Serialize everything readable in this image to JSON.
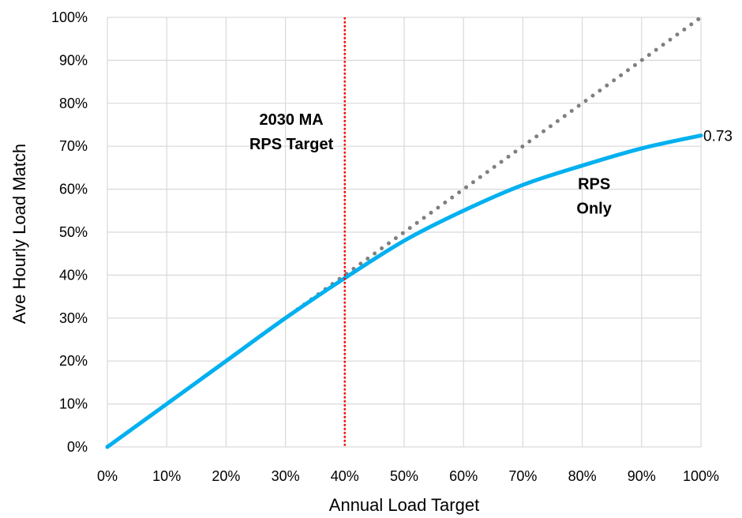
{
  "chart_data": {
    "type": "line",
    "xlabel": "Annual Load Target",
    "ylabel": "Ave Hourly Load Match",
    "xlim": [
      0,
      1
    ],
    "ylim": [
      0,
      1
    ],
    "x_ticks": [
      "0%",
      "10%",
      "20%",
      "30%",
      "40%",
      "50%",
      "60%",
      "70%",
      "80%",
      "90%",
      "100%"
    ],
    "y_ticks": [
      "0%",
      "10%",
      "20%",
      "30%",
      "40%",
      "50%",
      "60%",
      "70%",
      "80%",
      "90%",
      "100%"
    ],
    "grid": true,
    "series": [
      {
        "name": "",
        "style": "dotted",
        "color": "#7f7f7f",
        "x": [
          0,
          1
        ],
        "y": [
          0,
          1
        ]
      },
      {
        "name": "",
        "style": "solid",
        "color": "#00b0f0",
        "x": [
          0,
          0.1,
          0.2,
          0.3,
          0.4,
          0.5,
          0.6,
          0.7,
          0.8,
          0.9,
          1.0
        ],
        "y": [
          0,
          0.1,
          0.2,
          0.3,
          0.393,
          0.48,
          0.55,
          0.61,
          0.655,
          0.695,
          0.725
        ]
      }
    ],
    "vline": {
      "x": 0.4,
      "color": "#ff0000",
      "style": "dotted"
    },
    "annotations": [
      {
        "text_lines": [
          "2030 MA",
          "RPS Target"
        ],
        "x": 0.31,
        "y": 0.75
      },
      {
        "text_lines": [
          "RPS",
          "Only"
        ],
        "x": 0.82,
        "y": 0.6
      }
    ],
    "end_label": {
      "text": "0.73",
      "x": 1.0,
      "y": 0.725
    }
  }
}
